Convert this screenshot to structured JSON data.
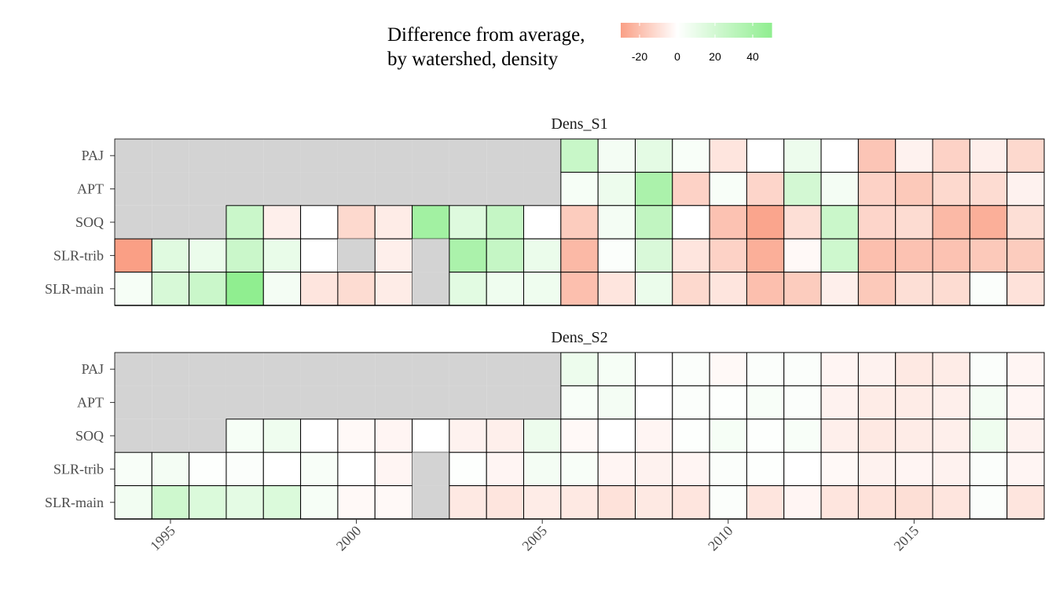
{
  "chart_data": {
    "type": "heatmap",
    "legend": {
      "title_lines": [
        "Difference from average,",
        "by watershed, density"
      ],
      "ticks": [
        -20,
        0,
        20,
        40
      ],
      "range": [
        -30,
        50
      ],
      "low_color": "#fa9f85",
      "mid_color": "#ffffff",
      "high_color": "#90ee90",
      "placement": "top"
    },
    "missing_color": "#d3d3d3",
    "x": {
      "years": [
        1994,
        1995,
        1996,
        1997,
        1998,
        1999,
        2000,
        2001,
        2002,
        2003,
        2004,
        2005,
        2006,
        2007,
        2008,
        2009,
        2010,
        2011,
        2012,
        2013,
        2014,
        2015,
        2016,
        2017,
        2018
      ],
      "tick_labels": [
        "1995",
        "2000",
        "2005",
        "2010",
        "2015"
      ],
      "tick_values": [
        1995,
        2000,
        2005,
        2010,
        2015
      ]
    },
    "rows": [
      "PAJ",
      "APT",
      "SOQ",
      "SLR-trib",
      "SLR-main"
    ],
    "panels": [
      {
        "title": "Dens_S1",
        "values": {
          "PAJ": [
            null,
            null,
            null,
            null,
            null,
            null,
            null,
            null,
            null,
            null,
            null,
            null,
            25,
            5,
            12,
            3,
            -8,
            0,
            8,
            0,
            -18,
            -4,
            -14,
            -5,
            -12
          ],
          "APT": [
            null,
            null,
            null,
            null,
            null,
            null,
            null,
            null,
            null,
            null,
            null,
            null,
            4,
            8,
            38,
            -14,
            3,
            -13,
            20,
            5,
            -14,
            -17,
            -12,
            -11,
            -4
          ],
          "SOQ": [
            null,
            null,
            null,
            null,
            null,
            null,
            null,
            null,
            null,
            null,
            null,
            null,
            -16,
            5,
            28,
            0,
            -19,
            -28,
            -10,
            24,
            -13,
            -11,
            -22,
            -25,
            -10
          ],
          "SLR-trib": [
            -30,
            14,
            9,
            24,
            10,
            0,
            null,
            -5,
            null,
            38,
            26,
            9,
            -22,
            2,
            17,
            -8,
            -14,
            -25,
            -2,
            22,
            -20,
            -19,
            -19,
            -17,
            -16
          ],
          "SLR-main": [
            4,
            18,
            24,
            50,
            5,
            -8,
            -11,
            -6,
            null,
            13,
            7,
            7,
            -20,
            -8,
            9,
            -12,
            -8,
            -20,
            -16,
            -5,
            -17,
            -10,
            -11,
            2,
            -9
          ]
        },
        "partial_values": {
          "SOQ": [
            null,
            null,
            null,
            24,
            -5,
            0,
            -12,
            -6,
            42,
            15,
            26,
            0
          ]
        }
      },
      {
        "title": "Dens_S2",
        "values": {
          "PAJ": [
            null,
            null,
            null,
            null,
            null,
            null,
            null,
            null,
            null,
            null,
            null,
            null,
            8,
            4,
            0,
            2,
            -2,
            2,
            2,
            -3,
            -4,
            -7,
            -6,
            2,
            -3
          ],
          "APT": [
            null,
            null,
            null,
            null,
            null,
            null,
            null,
            null,
            null,
            null,
            null,
            null,
            3,
            5,
            0,
            2,
            1,
            3,
            2,
            -4,
            -6,
            -6,
            -5,
            5,
            -3
          ],
          "SOQ": [
            null,
            null,
            null,
            4,
            7,
            0,
            -2,
            -3,
            0,
            -4,
            -5,
            8,
            -2,
            0,
            -3,
            1,
            4,
            1,
            3,
            -5,
            -7,
            -6,
            -5,
            7,
            -4
          ],
          "SLR-trib": [
            3,
            5,
            1,
            2,
            0,
            3,
            0,
            -3,
            null,
            1,
            -3,
            5,
            3,
            -3,
            -4,
            -3,
            2,
            1,
            0,
            -2,
            -4,
            -3,
            -4,
            2,
            -3
          ],
          "SLR-main": [
            6,
            22,
            16,
            12,
            16,
            4,
            -2,
            -2,
            null,
            -7,
            -8,
            -6,
            -7,
            -9,
            -7,
            -8,
            2,
            -8,
            -3,
            -8,
            -9,
            -10,
            -8,
            2,
            -8
          ]
        }
      }
    ]
  }
}
